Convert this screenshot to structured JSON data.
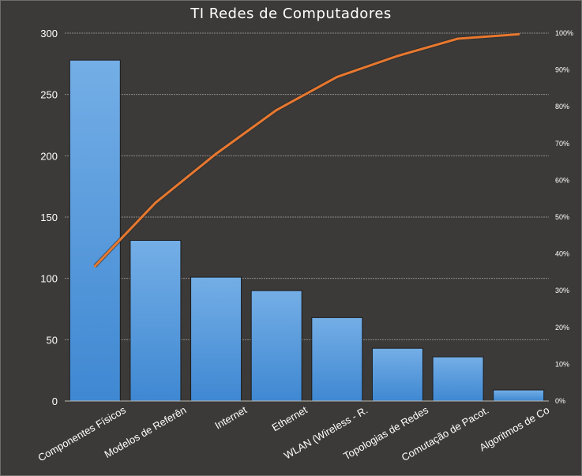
{
  "chart_data": {
    "type": "bar",
    "title": "TI Redes de Computadores",
    "categories": [
      "Componentes Físicos",
      "Modelos de Referên",
      "Internet",
      "Ethernet",
      "WLAN (Wireless - R.",
      "Topologias de Redes",
      "Comutação de Pacot.",
      "Algoritmos de Co"
    ],
    "series": [
      {
        "type": "bar",
        "values": [
          278,
          131,
          101,
          90,
          68,
          43,
          36,
          9
        ]
      },
      {
        "type": "line",
        "axis": "right",
        "values": [
          0.367,
          0.539,
          0.672,
          0.791,
          0.881,
          0.938,
          0.985,
          0.997
        ]
      }
    ],
    "ylim": [
      0,
      300
    ],
    "yticks": [
      0,
      50,
      100,
      150,
      200,
      250,
      300
    ],
    "y2lim": [
      0,
      1
    ],
    "y2ticks": [
      "0%",
      "10%",
      "20%",
      "30%",
      "40%",
      "50%",
      "60%",
      "70%",
      "80%",
      "90%",
      "100%"
    ],
    "grid": true,
    "legend": "none",
    "colors": {
      "bar": "#4a90d9",
      "bar_top": "#74aee6",
      "line": "#e8782f",
      "grid": "#8c8b88",
      "text": "#ffffff"
    }
  }
}
